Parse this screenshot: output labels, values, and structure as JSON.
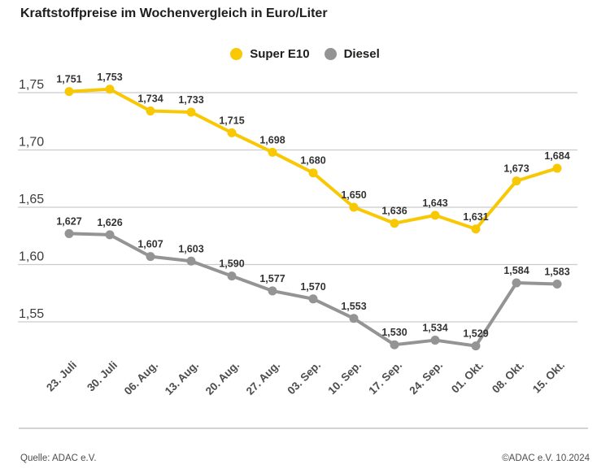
{
  "title": "Kraftstoffpreise im Wochenvergleich in Euro/Liter",
  "footer": {
    "source": "Quelle: ADAC e.V.",
    "copyright": "©ADAC e.V. 10.2024"
  },
  "colors": {
    "super_e10": "#F8C804",
    "diesel": "#949494",
    "gridline": "#cccccc",
    "divider": "#d4d4d4",
    "point_label": "#333333",
    "axis_label": "#444444"
  },
  "chart_data": {
    "type": "line",
    "title": "Kraftstoffpreise im Wochenvergleich in Euro/Liter",
    "xlabel": "",
    "ylabel": "Euro/Liter",
    "grid": true,
    "legend_position": "top-center",
    "categories": [
      "23. Juli",
      "30. Juli",
      "06. Aug.",
      "13. Aug.",
      "20. Aug.",
      "27. Aug.",
      "03. Sep.",
      "10. Sep.",
      "17. Sep.",
      "24. Sep.",
      "01. Okt.",
      "08. Okt.",
      "15. Okt."
    ],
    "series": [
      {
        "name": "Super E10",
        "color": "#F8C804",
        "values": [
          1.751,
          1.753,
          1.734,
          1.733,
          1.715,
          1.698,
          1.68,
          1.65,
          1.636,
          1.643,
          1.631,
          1.673,
          1.684
        ]
      },
      {
        "name": "Diesel",
        "color": "#949494",
        "values": [
          1.627,
          1.626,
          1.607,
          1.603,
          1.59,
          1.577,
          1.57,
          1.553,
          1.53,
          1.534,
          1.529,
          1.584,
          1.583
        ]
      }
    ],
    "yticks": [
      1.55,
      1.6,
      1.65,
      1.7,
      1.75
    ],
    "ytick_labels": [
      "1,55",
      "1,60",
      "1,65",
      "1,70",
      "1,75"
    ],
    "ylim": [
      1.52,
      1.77
    ],
    "value_decimal_separator": ","
  }
}
